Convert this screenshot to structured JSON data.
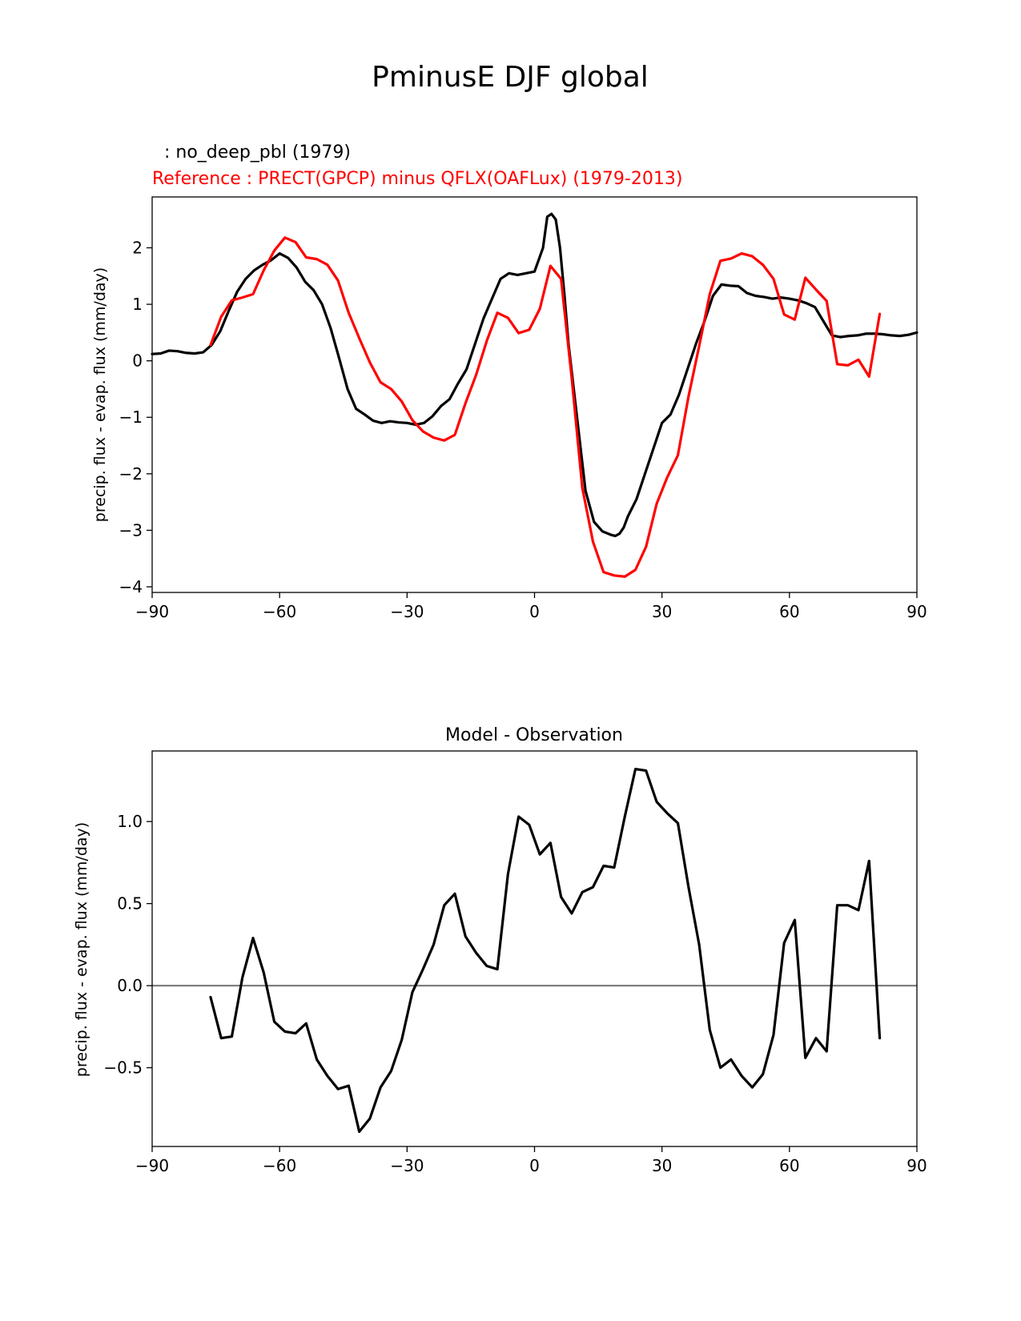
{
  "figure_title": "PminusE DJF global",
  "colors": {
    "test": "#000000",
    "reference": "#ff0000",
    "zero_line": "#808080"
  },
  "chart_data": [
    {
      "type": "line",
      "panel": "comparison",
      "test_label": ": no_deep_pbl (1979)",
      "reference_label": "Reference : PRECT(GPCP) minus QFLX(OAFLux) (1979-2013)",
      "xlabel": "",
      "ylabel": "precip. flux - evap. flux (mm/day)",
      "xlim": [
        -90,
        90
      ],
      "ylim": [
        -4.1,
        2.9
      ],
      "xticks": [
        -90,
        -60,
        -30,
        0,
        30,
        60,
        90
      ],
      "xtick_labels": [
        "−90",
        "−60",
        "−30",
        "0",
        "30",
        "60",
        "90"
      ],
      "yticks": [
        -4,
        -3,
        -2,
        -1,
        0,
        1,
        2
      ],
      "ytick_labels": [
        "−4",
        "−3",
        "−2",
        "−1",
        "0",
        "1",
        "2"
      ],
      "series": [
        {
          "name": "no_deep_pbl",
          "color": "#000000",
          "x": [
            -90,
            -88,
            -86,
            -84,
            -82,
            -80,
            -78,
            -76,
            -74,
            -72,
            -70,
            -68,
            -66,
            -64,
            -62,
            -60,
            -58,
            -56,
            -54,
            -52,
            -50,
            -48,
            -46,
            -44,
            -42,
            -40,
            -38,
            -36,
            -34,
            -32,
            -30,
            -28,
            -26,
            -24,
            -22,
            -20,
            -18,
            -16,
            -14,
            -12,
            -10,
            -8,
            -6,
            -4,
            -2,
            0,
            2,
            3,
            4,
            5,
            6,
            7,
            8,
            10,
            12,
            14,
            16,
            18,
            19,
            20,
            21,
            22,
            24,
            26,
            28,
            30,
            32,
            34,
            36,
            38,
            40,
            42,
            44,
            46,
            48,
            50,
            52,
            54,
            56,
            58,
            60,
            62,
            64,
            66,
            68,
            70,
            72,
            74,
            76,
            78,
            80,
            82,
            84,
            86,
            88,
            90
          ],
          "values": [
            0.12,
            0.13,
            0.18,
            0.17,
            0.14,
            0.13,
            0.15,
            0.28,
            0.52,
            0.88,
            1.22,
            1.45,
            1.6,
            1.7,
            1.78,
            1.9,
            1.82,
            1.65,
            1.4,
            1.25,
            1.0,
            0.58,
            0.05,
            -0.5,
            -0.85,
            -0.95,
            -1.06,
            -1.1,
            -1.07,
            -1.09,
            -1.1,
            -1.13,
            -1.1,
            -0.98,
            -0.8,
            -0.68,
            -0.4,
            -0.15,
            0.3,
            0.75,
            1.1,
            1.45,
            1.55,
            1.52,
            1.55,
            1.58,
            2.0,
            2.55,
            2.6,
            2.5,
            2.0,
            1.2,
            0.3,
            -1.0,
            -2.3,
            -2.85,
            -3.02,
            -3.08,
            -3.1,
            -3.06,
            -2.95,
            -2.75,
            -2.45,
            -2.0,
            -1.55,
            -1.1,
            -0.95,
            -0.6,
            -0.15,
            0.3,
            0.7,
            1.15,
            1.35,
            1.33,
            1.32,
            1.2,
            1.15,
            1.13,
            1.1,
            1.12,
            1.1,
            1.07,
            1.02,
            0.95,
            0.7,
            0.45,
            0.42,
            0.44,
            0.45,
            0.48,
            0.48,
            0.47,
            0.45,
            0.44,
            0.46,
            0.5
          ]
        },
        {
          "name": "Reference",
          "color": "#ff0000",
          "x": [
            -76.25,
            -73.75,
            -71.25,
            -68.75,
            -66.25,
            -63.75,
            -61.25,
            -58.75,
            -56.25,
            -53.75,
            -51.25,
            -48.75,
            -46.25,
            -43.75,
            -41.25,
            -38.75,
            -36.25,
            -33.75,
            -31.25,
            -28.75,
            -26.25,
            -23.75,
            -21.25,
            -18.75,
            -16.25,
            -13.75,
            -11.25,
            -8.75,
            -6.25,
            -3.75,
            -1.25,
            1.25,
            3.75,
            6.25,
            8.75,
            11.25,
            13.75,
            16.25,
            18.75,
            21.25,
            23.75,
            26.25,
            28.75,
            31.25,
            33.75,
            36.25,
            38.75,
            41.25,
            43.75,
            46.25,
            48.75,
            51.25,
            53.75,
            56.25,
            58.75,
            61.25,
            63.75,
            66.25,
            68.75,
            71.25,
            73.75,
            76.25,
            78.75,
            81.25
          ],
          "values": [
            0.28,
            0.78,
            1.07,
            1.12,
            1.18,
            1.6,
            1.95,
            2.18,
            2.1,
            1.83,
            1.8,
            1.7,
            1.42,
            0.85,
            0.4,
            -0.03,
            -0.38,
            -0.5,
            -0.72,
            -1.05,
            -1.25,
            -1.36,
            -1.41,
            -1.31,
            -0.75,
            -0.25,
            0.35,
            0.85,
            0.76,
            0.49,
            0.55,
            0.92,
            1.68,
            1.45,
            -0.3,
            -2.25,
            -3.2,
            -3.74,
            -3.8,
            -3.82,
            -3.7,
            -3.29,
            -2.53,
            -2.06,
            -1.67,
            -0.63,
            0.26,
            1.18,
            1.77,
            1.81,
            1.9,
            1.85,
            1.7,
            1.45,
            0.82,
            0.73,
            1.47,
            1.26,
            1.06,
            -0.06,
            -0.08,
            0.02,
            -0.28,
            0.83
          ]
        }
      ]
    },
    {
      "type": "line",
      "panel": "difference",
      "title": "Model - Observation",
      "xlabel": "",
      "ylabel": "precip. flux - evap. flux (mm/day)",
      "xlim": [
        -90,
        90
      ],
      "ylim": [
        -0.98,
        1.43
      ],
      "xticks": [
        -90,
        -60,
        -30,
        0,
        30,
        60,
        90
      ],
      "xtick_labels": [
        "−90",
        "−60",
        "−30",
        "0",
        "30",
        "60",
        "90"
      ],
      "yticks": [
        -0.5,
        0.0,
        0.5,
        1.0
      ],
      "ytick_labels": [
        "−0.5",
        "0.0",
        "0.5",
        "1.0"
      ],
      "zero_line": 0,
      "series": [
        {
          "name": "Model - Observation",
          "color": "#000000",
          "x": [
            -76.25,
            -73.75,
            -71.25,
            -68.75,
            -66.25,
            -63.75,
            -61.25,
            -58.75,
            -56.25,
            -53.75,
            -51.25,
            -48.75,
            -46.25,
            -43.75,
            -41.25,
            -38.75,
            -36.25,
            -33.75,
            -31.25,
            -28.75,
            -26.25,
            -23.75,
            -21.25,
            -18.75,
            -16.25,
            -13.75,
            -11.25,
            -8.75,
            -6.25,
            -3.75,
            -1.25,
            1.25,
            3.75,
            6.25,
            8.75,
            11.25,
            13.75,
            16.25,
            18.75,
            21.25,
            23.75,
            26.25,
            28.75,
            31.25,
            33.75,
            36.25,
            38.75,
            41.25,
            43.75,
            46.25,
            48.75,
            51.25,
            53.75,
            56.25,
            58.75,
            61.25,
            63.75,
            66.25,
            68.75,
            71.25,
            73.75,
            76.25,
            78.75,
            81.25
          ],
          "values": [
            -0.07,
            -0.32,
            -0.31,
            0.05,
            0.29,
            0.08,
            -0.22,
            -0.28,
            -0.29,
            -0.23,
            -0.45,
            -0.55,
            -0.63,
            -0.61,
            -0.89,
            -0.81,
            -0.62,
            -0.52,
            -0.33,
            -0.04,
            0.1,
            0.25,
            0.49,
            0.56,
            0.3,
            0.2,
            0.12,
            0.1,
            0.68,
            1.03,
            0.98,
            0.8,
            0.87,
            0.54,
            0.44,
            0.57,
            0.6,
            0.73,
            0.72,
            1.03,
            1.32,
            1.31,
            1.12,
            1.05,
            0.99,
            0.6,
            0.25,
            -0.27,
            -0.5,
            -0.45,
            -0.55,
            -0.62,
            -0.54,
            -0.3,
            0.26,
            0.4,
            -0.44,
            -0.32,
            -0.4,
            0.49,
            0.49,
            0.46,
            0.76,
            -0.32
          ]
        }
      ]
    }
  ]
}
